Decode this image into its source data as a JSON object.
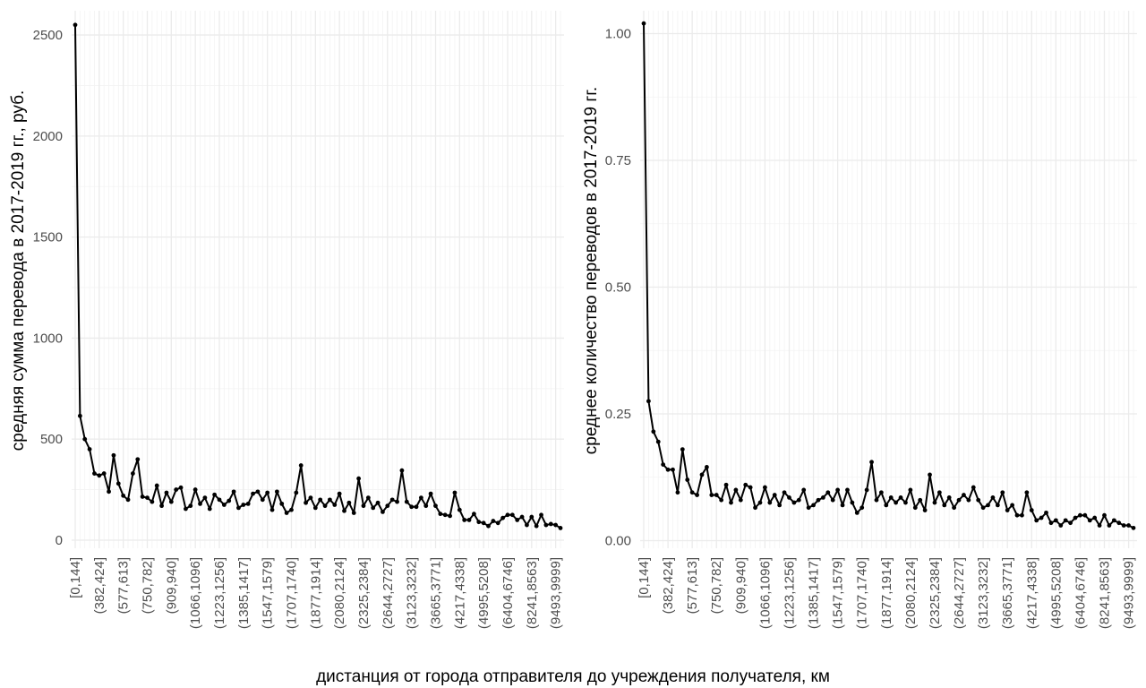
{
  "xlabel": "дистанция от города отправителя до учреждения получателя, км",
  "chart_data": [
    {
      "type": "line",
      "ylabel": "средняя сумма перевода в 2017-2019 гг., руб.",
      "ylim": [
        -40,
        2620
      ],
      "yticks": [
        0,
        500,
        1000,
        1500,
        2000,
        2500
      ],
      "tick_labels": [
        "[0,144]",
        "(382,424]",
        "(577,613]",
        "(750,782]",
        "(909,940]",
        "(1066,1096]",
        "(1223,1256]",
        "(1385,1417]",
        "(1547,1579]",
        "(1707,1740]",
        "(1877,1914]",
        "(2080,2124]",
        "(2325,2384]",
        "(2644,2727]",
        "(3123,3232]",
        "(3665,3771]",
        "(4217,4338]",
        "(4995,5208]",
        "(6404,6746]",
        "(8241,8563]",
        "(9493,9999]"
      ],
      "values": [
        2550,
        615,
        500,
        450,
        330,
        320,
        330,
        240,
        420,
        280,
        220,
        200,
        330,
        400,
        215,
        210,
        190,
        270,
        170,
        235,
        190,
        250,
        260,
        155,
        170,
        250,
        180,
        210,
        155,
        225,
        200,
        175,
        195,
        240,
        160,
        175,
        180,
        230,
        240,
        200,
        235,
        150,
        240,
        180,
        135,
        150,
        235,
        370,
        185,
        210,
        160,
        200,
        170,
        200,
        175,
        230,
        145,
        185,
        135,
        305,
        170,
        210,
        160,
        185,
        140,
        170,
        200,
        190,
        345,
        190,
        165,
        165,
        210,
        170,
        230,
        170,
        130,
        125,
        120,
        235,
        150,
        100,
        100,
        130,
        90,
        85,
        70,
        95,
        85,
        110,
        125,
        125,
        100,
        115,
        75,
        115,
        70,
        125,
        75,
        80,
        75,
        60
      ]
    },
    {
      "type": "line",
      "ylabel": "среднее количество переводов в 2017-2019 гг.",
      "ylim": [
        -0.015,
        1.045
      ],
      "yticks": [
        0,
        0.25,
        0.5,
        0.75,
        1.0
      ],
      "ytick_labels": [
        "0.00",
        "0.25",
        "0.50",
        "0.75",
        "1.00"
      ],
      "tick_labels": [
        "[0,144]",
        "(382,424]",
        "(577,613]",
        "(750,782]",
        "(909,940]",
        "(1066,1096]",
        "(1223,1256]",
        "(1385,1417]",
        "(1547,1579]",
        "(1707,1740]",
        "(1877,1914]",
        "(2080,2124]",
        "(2325,2384]",
        "(2644,2727]",
        "(3123,3232]",
        "(3665,3771]",
        "(4217,4338]",
        "(4995,5208]",
        "(6404,6746]",
        "(8241,8563]",
        "(9493,9999]"
      ],
      "values": [
        1.02,
        0.275,
        0.215,
        0.195,
        0.15,
        0.14,
        0.14,
        0.095,
        0.18,
        0.12,
        0.095,
        0.09,
        0.13,
        0.145,
        0.09,
        0.09,
        0.08,
        0.11,
        0.075,
        0.1,
        0.08,
        0.11,
        0.105,
        0.065,
        0.075,
        0.105,
        0.075,
        0.09,
        0.07,
        0.095,
        0.085,
        0.075,
        0.08,
        0.1,
        0.065,
        0.07,
        0.08,
        0.085,
        0.095,
        0.08,
        0.1,
        0.07,
        0.1,
        0.075,
        0.055,
        0.065,
        0.1,
        0.155,
        0.08,
        0.095,
        0.07,
        0.085,
        0.075,
        0.085,
        0.075,
        0.1,
        0.065,
        0.08,
        0.06,
        0.13,
        0.075,
        0.095,
        0.07,
        0.085,
        0.065,
        0.08,
        0.09,
        0.08,
        0.105,
        0.08,
        0.065,
        0.07,
        0.085,
        0.07,
        0.095,
        0.06,
        0.07,
        0.05,
        0.05,
        0.095,
        0.06,
        0.04,
        0.045,
        0.055,
        0.035,
        0.04,
        0.03,
        0.04,
        0.035,
        0.045,
        0.05,
        0.05,
        0.04,
        0.045,
        0.03,
        0.05,
        0.03,
        0.04,
        0.035,
        0.03,
        0.03,
        0.025
      ]
    }
  ]
}
